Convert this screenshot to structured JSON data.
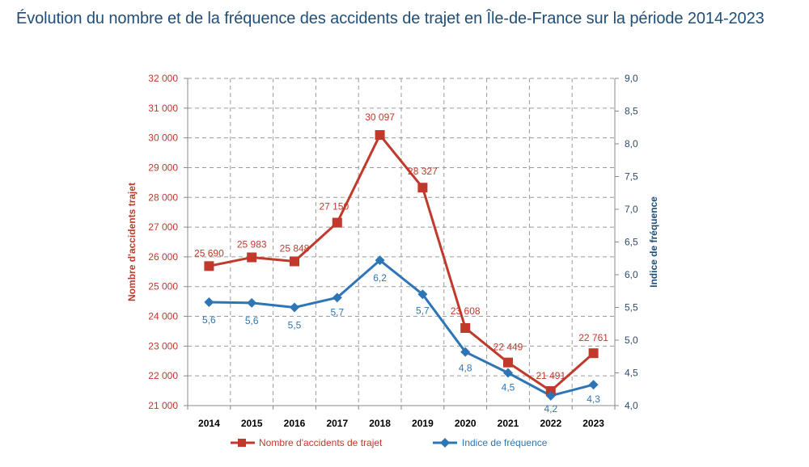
{
  "title": "Évolution du nombre et de la fréquence des accidents de trajet en Île-de-France sur la période 2014-2023",
  "chart_data": {
    "type": "line",
    "title": "Évolution du nombre et de la fréquence des accidents de trajet en Île-de-France sur la période 2014-2023",
    "categories": [
      "2014",
      "2015",
      "2016",
      "2017",
      "2018",
      "2019",
      "2020",
      "2021",
      "2022",
      "2023"
    ],
    "ylabel_left": "Nombre d'accidents  trajet",
    "ylabel_right": "Indice de fréquence",
    "ylim_left": [
      21000,
      32000
    ],
    "ylim_right": [
      4.0,
      9.0
    ],
    "yticks_left": [
      "21 000",
      "22 000",
      "23 000",
      "24 000",
      "25 000",
      "26 000",
      "27 000",
      "28 000",
      "29 000",
      "30 000",
      "31 000",
      "32 000"
    ],
    "yticks_right": [
      "4,0",
      "4,5",
      "5,0",
      "5,5",
      "6,0",
      "6,5",
      "7,0",
      "7,5",
      "8,0",
      "8,5",
      "9,0"
    ],
    "grid": true,
    "legend_position": "bottom",
    "series": [
      {
        "name": "Nombre d'accidents de trajet",
        "axis": "left",
        "color": "#c0392b",
        "marker": "square",
        "values": [
          25690,
          25983,
          25848,
          27150,
          30097,
          28327,
          23608,
          22449,
          21491,
          22761
        ],
        "labels": [
          "25 690",
          "25 983",
          "25 848",
          "27 150",
          "30 097",
          "28 327",
          "23 608",
          "22 449",
          "21 491",
          "22 761"
        ]
      },
      {
        "name": "Indice de fréquence",
        "axis": "right",
        "color": "#2e75b6",
        "marker": "diamond",
        "values": [
          5.58,
          5.57,
          5.5,
          5.65,
          6.22,
          5.7,
          4.82,
          4.5,
          4.15,
          4.32
        ],
        "labels": [
          "5,6",
          "5,6",
          "5,5",
          "5,7",
          "6,2",
          "5,7",
          "4,8",
          "4,5",
          "4,2",
          "4,3"
        ]
      }
    ]
  }
}
